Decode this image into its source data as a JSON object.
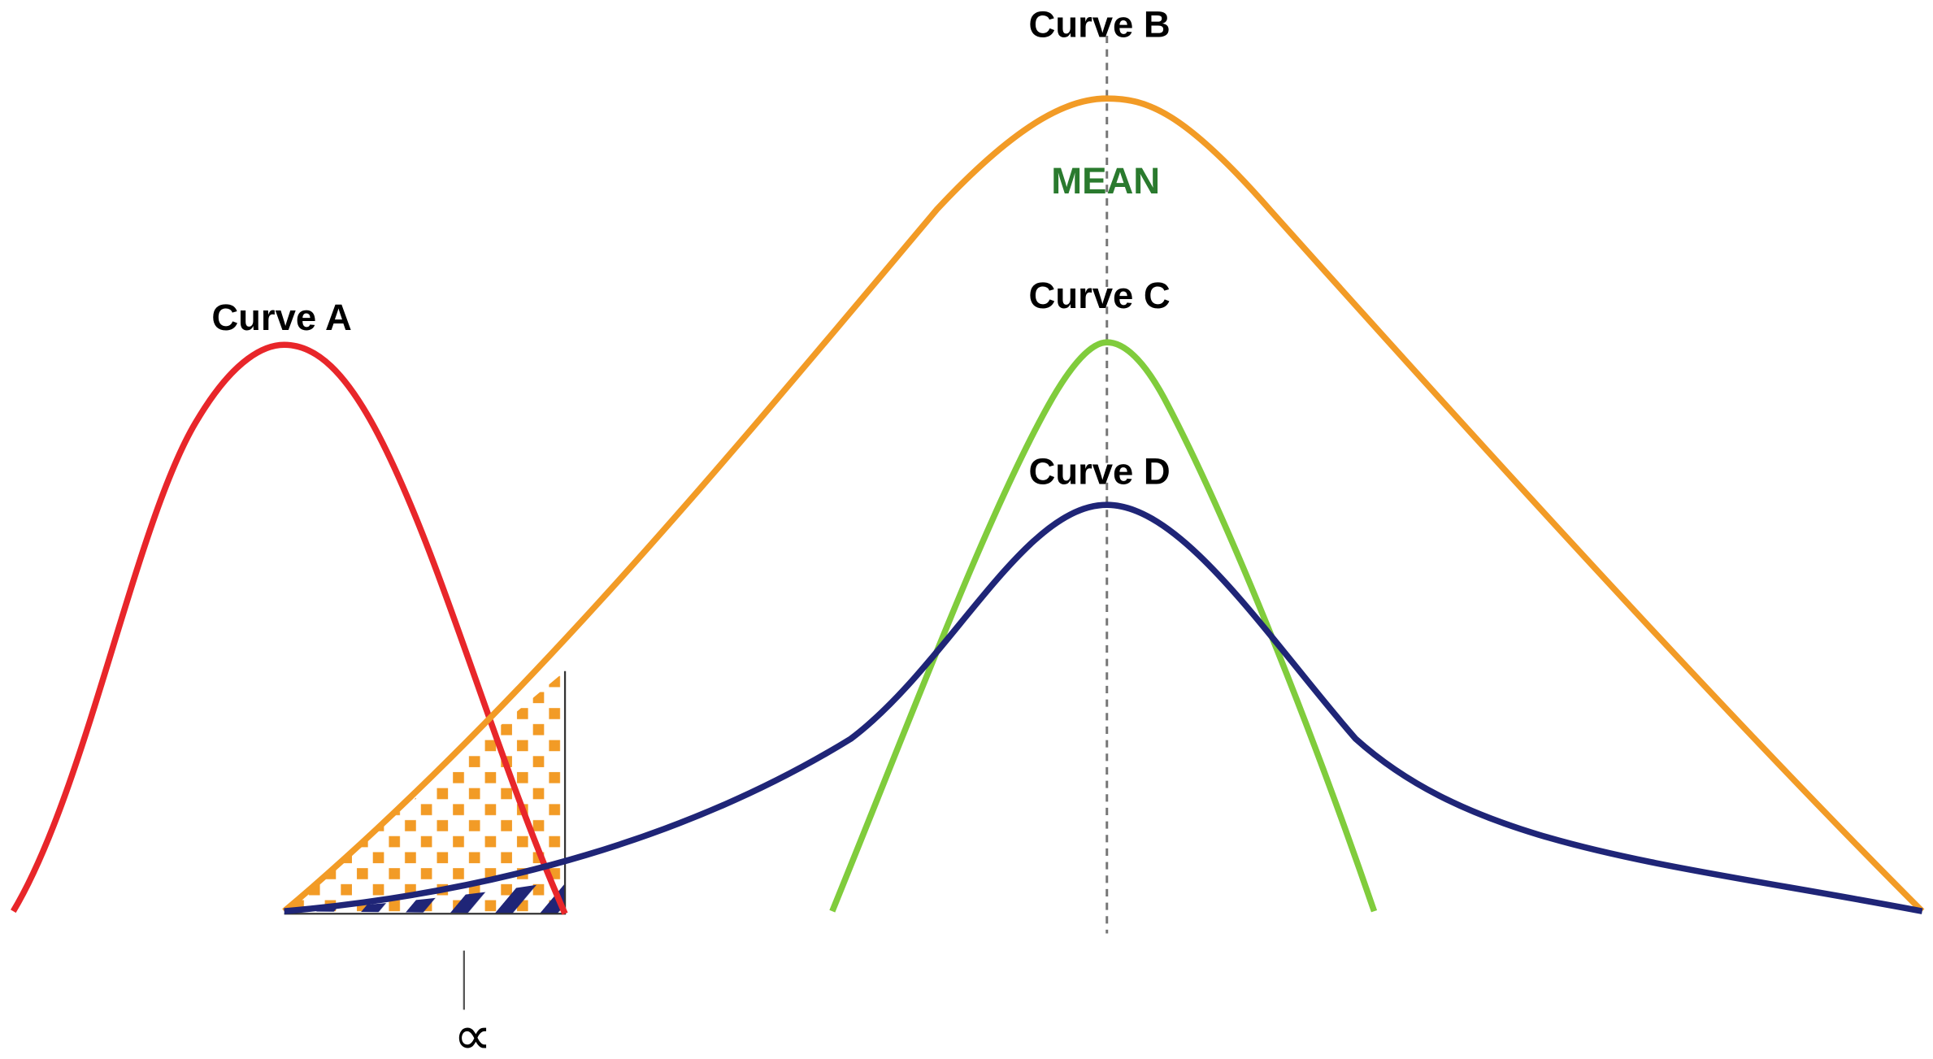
{
  "labels": {
    "curve_a": "Curve A",
    "curve_b": "Curve B",
    "curve_c": "Curve C",
    "curve_d": "Curve D",
    "mean": "MEAN",
    "alpha": "∝"
  },
  "colors": {
    "curve_a": "#e8262a",
    "curve_b": "#f29b26",
    "curve_c": "#80cc3c",
    "curve_d": "#1f2577",
    "mean_text": "#2a7a2e",
    "mean_line": "#777777"
  },
  "regions": {
    "alpha_region_b": "orange-dot-pattern",
    "alpha_region_d": "navy-diagonal-hatch"
  }
}
